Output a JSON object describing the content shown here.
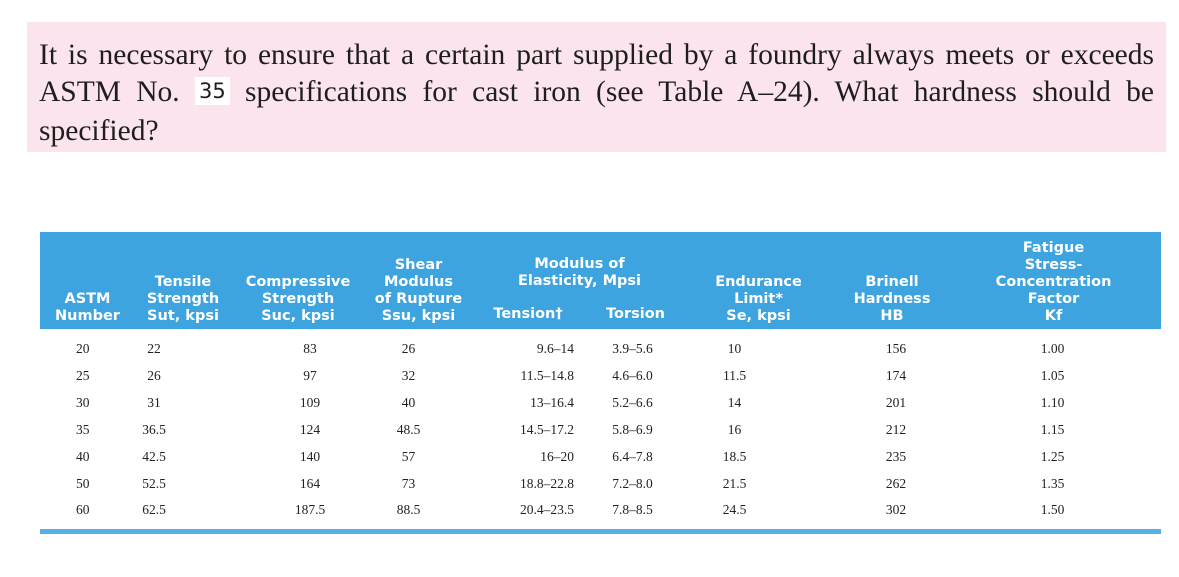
{
  "question": {
    "text_before": "It is necessary to ensure that a certain part supplied by a foundry always meets or exceeds ASTM No. ",
    "astm_number": "35",
    "text_after": " specifications for cast iron (see Table A–24). What hardness should be specified?"
  },
  "table": {
    "headers": {
      "astm": [
        "ASTM",
        "Number"
      ],
      "tensile": [
        "Tensile",
        "Strength",
        "Sut, kpsi"
      ],
      "compressive": [
        "Compressive",
        "Strength",
        "Suc, kpsi"
      ],
      "shear": [
        "Shear",
        "Modulus",
        "of Rupture",
        "Ssu, kpsi"
      ],
      "modulus": [
        "Modulus of",
        "Elasticity, Mpsi"
      ],
      "tension": "Tension†",
      "torsion": "Torsion",
      "endurance": [
        "Endurance",
        "Limit*",
        "Se, kpsi"
      ],
      "brinell": [
        "Brinell",
        "Hardness",
        "HB"
      ],
      "fatigue": [
        "Fatigue",
        "Stress-",
        "Concentration",
        "Factor",
        "Kf"
      ]
    },
    "rows": [
      [
        "20",
        "22",
        "83",
        "26",
        "9.6–14",
        "3.9–5.6",
        "10",
        "156",
        "1.00"
      ],
      [
        "25",
        "26",
        "97",
        "32",
        "11.5–14.8",
        "4.6–6.0",
        "11.5",
        "174",
        "1.05"
      ],
      [
        "30",
        "31",
        "109",
        "40",
        "13–16.4",
        "5.2–6.6",
        "14",
        "201",
        "1.10"
      ],
      [
        "35",
        "36.5",
        "124",
        "48.5",
        "14.5–17.2",
        "5.8–6.9",
        "16",
        "212",
        "1.15"
      ],
      [
        "40",
        "42.5",
        "140",
        "57",
        "16–20",
        "6.4–7.8",
        "18.5",
        "235",
        "1.25"
      ],
      [
        "50",
        "52.5",
        "164",
        "73",
        "18.8–22.8",
        "7.2–8.0",
        "21.5",
        "262",
        "1.35"
      ],
      [
        "60",
        "62.5",
        "187.5",
        "88.5",
        "20.4–23.5",
        "7.8–8.5",
        "24.5",
        "302",
        "1.50"
      ]
    ]
  },
  "colors": {
    "question_background": "#fbe4ee",
    "table_header": "#3ea4e0",
    "bottom_rule": "#56b0e6"
  }
}
